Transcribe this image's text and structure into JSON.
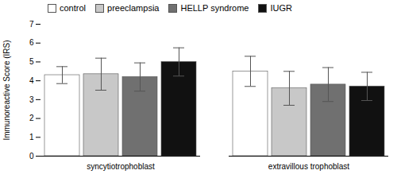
{
  "chart_data": {
    "type": "bar",
    "categories": [
      "syncytiotrophoblast",
      "extravillous trophoblast"
    ],
    "series": [
      {
        "name": "control",
        "color": "#ffffff",
        "values": [
          4.3,
          4.5
        ],
        "errors": [
          0.45,
          0.8
        ]
      },
      {
        "name": "preeclampsia",
        "color": "#c8c8c8",
        "values": [
          4.35,
          3.6
        ],
        "errors": [
          0.85,
          0.9
        ]
      },
      {
        "name": "HELLP syndrome",
        "color": "#707070",
        "values": [
          4.2,
          3.8
        ],
        "errors": [
          0.75,
          0.9
        ]
      },
      {
        "name": "IUGR",
        "color": "#111111",
        "values": [
          5.0,
          3.7
        ],
        "errors": [
          0.75,
          0.75
        ]
      }
    ],
    "ylabel": "Immunoreactive Score (IRS)",
    "ylim": [
      0,
      7
    ],
    "yticks": [
      0,
      1,
      2,
      3,
      4,
      5,
      6,
      7
    ],
    "legend": "upper left"
  }
}
